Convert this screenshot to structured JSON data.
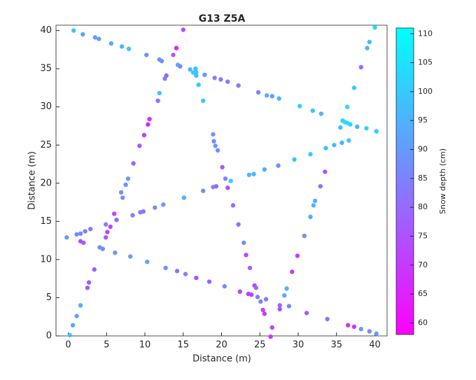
{
  "chart_data": {
    "type": "scatter",
    "title": "G13 Z5A",
    "x_label": "Distance (m)",
    "y_label": "Distance (m)",
    "colorbar_label": "Snow depth (cm)",
    "colormap": "cool",
    "clim": [
      58,
      111
    ],
    "cticks": [
      60,
      65,
      70,
      75,
      80,
      85,
      90,
      95,
      100,
      105,
      110
    ],
    "xlim": [
      -1.6,
      41.6
    ],
    "ylim": [
      0,
      40.7
    ],
    "xticks": [
      0,
      5,
      10,
      15,
      20,
      25,
      30,
      35,
      40
    ],
    "yticks": [
      0,
      5,
      10,
      15,
      20,
      25,
      30,
      35,
      40
    ],
    "x": [
      0.7,
      1.9,
      3.5,
      4.0,
      5.6,
      7.0,
      7.9,
      10.2,
      11.9,
      12.2,
      14.3,
      14.6,
      15.9,
      16.6,
      16.7,
      17.8,
      19.1,
      19.9,
      20.8,
      22.2,
      24.8,
      25.9,
      26.6,
      27.5,
      30.2,
      31.9,
      33.0,
      37.7,
      38.9,
      40.2,
      40.0,
      39.3,
      39.0,
      38.2,
      37.3,
      36.4,
      35.8,
      36.1,
      36.4,
      36.8,
      35.5,
      -0.2,
      1.1,
      1.6,
      2.2,
      2.9,
      4.9,
      6.3,
      8.4,
      9.4,
      9.8,
      11.3,
      12.4,
      15.1,
      17.6,
      18.9,
      19.3,
      21.2,
      23.6,
      24.2,
      25.6,
      27.4,
      29.5,
      31.6,
      33.6,
      34.7,
      35.7,
      36.6,
      0.2,
      0.6,
      1.1,
      1.6,
      1.6,
      2.0,
      2.5,
      2.7,
      3.4,
      4.1,
      4.5,
      4.9,
      5.1,
      5.5,
      6.0,
      7.1,
      6.9,
      7.5,
      7.8,
      8.5,
      9.3,
      9.9,
      10.4,
      10.6,
      11.7,
      11.9,
      12.6,
      12.8,
      13.7,
      14.1,
      15.0,
      16.3,
      16.7,
      17.0,
      17.6,
      18.9,
      19.0,
      19.2,
      19.5,
      20.1,
      20.5,
      20.8,
      21.5,
      22.2,
      22.9,
      23.2,
      23.7,
      24.3,
      24.5,
      25.1,
      25.4,
      25.6,
      26.6,
      26.4,
      6.1,
      8.1,
      10.3,
      12.7,
      14.2,
      15.3,
      16.7,
      18.4,
      20.4,
      22.4,
      23.5,
      23.9,
      24.7,
      25.8,
      27.6,
      28.8,
      31.1,
      33.8,
      36.5,
      37.3,
      38.2,
      39.3,
      40.2,
      33.5,
      32.9,
      32.2,
      32.0,
      31.6,
      30.8,
      29.9,
      29.2,
      28.5,
      28.2,
      27.6
    ],
    "y": [
      40.0,
      39.5,
      39.1,
      38.9,
      38.3,
      37.9,
      37.6,
      36.8,
      36.2,
      36.0,
      35.5,
      35.3,
      34.9,
      35.0,
      34.5,
      34.2,
      33.8,
      33.6,
      33.3,
      32.8,
      31.9,
      31.5,
      31.4,
      31.1,
      30.1,
      29.5,
      29.1,
      27.4,
      27.2,
      26.8,
      40.4,
      38.5,
      37.7,
      35.2,
      32.5,
      30.0,
      28.2,
      28.0,
      27.9,
      27.7,
      27.3,
      12.9,
      13.3,
      13.4,
      13.7,
      14.0,
      14.6,
      15.2,
      15.8,
      16.2,
      16.3,
      16.8,
      17.2,
      18.1,
      19.0,
      19.5,
      19.6,
      20.3,
      21.1,
      21.2,
      21.8,
      22.3,
      23.1,
      23.8,
      24.6,
      25.0,
      25.3,
      25.6,
      0.1,
      1.4,
      2.6,
      4.0,
      12.4,
      12.2,
      6.3,
      7.0,
      8.7,
      11.6,
      11.4,
      12.9,
      13.6,
      14.3,
      16.0,
      18.1,
      18.8,
      19.8,
      20.6,
      22.6,
      24.9,
      26.3,
      27.7,
      28.4,
      30.8,
      31.8,
      33.7,
      34.1,
      36.8,
      37.7,
      40.1,
      34.5,
      34.1,
      32.9,
      30.8,
      26.4,
      25.5,
      24.9,
      24.3,
      22.1,
      20.6,
      19.4,
      17.1,
      14.6,
      12.2,
      10.6,
      8.9,
      6.6,
      6.3,
      4.5,
      3.4,
      2.9,
      1.1,
      -0.1,
      10.9,
      10.4,
      9.7,
      8.9,
      8.5,
      8.1,
      7.6,
      7.1,
      6.5,
      5.8,
      5.5,
      5.4,
      5.1,
      4.8,
      4.0,
      3.9,
      3.0,
      2.2,
      1.4,
      1.2,
      0.9,
      0.6,
      0.3,
      21.5,
      19.6,
      17.7,
      17.1,
      15.6,
      13.1,
      10.5,
      8.4,
      6.2,
      5.3,
      3.5
    ],
    "z": [
      100,
      92,
      90,
      92,
      93,
      95,
      100,
      88,
      88,
      88,
      93,
      86,
      95,
      97,
      100,
      90,
      85,
      84,
      84,
      85,
      85,
      95,
      90,
      97,
      102,
      98,
      95,
      95,
      102,
      100,
      104,
      97,
      95,
      80,
      100,
      103,
      102,
      104,
      104,
      103,
      98,
      90,
      88,
      86,
      85,
      83,
      86,
      80,
      85,
      84,
      82,
      88,
      90,
      94,
      88,
      85,
      80,
      100,
      97,
      96,
      94,
      88,
      98,
      100,
      97,
      96,
      94,
      100,
      98,
      92,
      92,
      94,
      73,
      78,
      76,
      75,
      78,
      88,
      87,
      76,
      73,
      72,
      73,
      87,
      88,
      88,
      90,
      78,
      76,
      71,
      66,
      68,
      82,
      100,
      86,
      80,
      75,
      65,
      73,
      100,
      98,
      100,
      100,
      90,
      87,
      90,
      88,
      76,
      85,
      73,
      80,
      80,
      87,
      72,
      78,
      72,
      80,
      86,
      72,
      70,
      73,
      70,
      90,
      90,
      92,
      88,
      82,
      86,
      76,
      78,
      88,
      72,
      70,
      72,
      85,
      85,
      78,
      85,
      78,
      83,
      68,
      70,
      90,
      87,
      90,
      75,
      82,
      95,
      95,
      95,
      88,
      72,
      70,
      95,
      92,
      75
    ]
  }
}
